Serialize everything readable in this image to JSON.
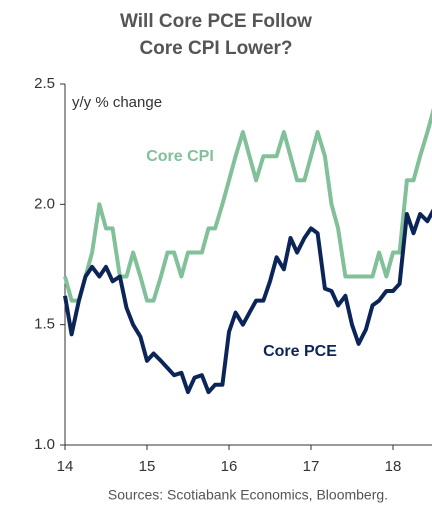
{
  "chart_data": {
    "type": "line",
    "title": [
      "Will Core PCE Follow",
      "Core CPI Lower?"
    ],
    "ylabel": "y/y % change",
    "source": "Sources: Scotiabank Economics, Bloomberg.",
    "xlim": [
      14,
      18.5
    ],
    "xticks": [
      14,
      15,
      16,
      17,
      18
    ],
    "ylim": [
      1,
      2.5
    ],
    "yticks": [
      {
        "value": 1,
        "label": "1.0"
      },
      1.5,
      {
        "value": 2,
        "label": "2.0"
      },
      2.5
    ],
    "x": [
      14,
      14.08,
      14.17,
      14.25,
      14.33,
      14.42,
      14.5,
      14.58,
      14.67,
      14.75,
      14.83,
      14.92,
      15,
      15.08,
      15.17,
      15.25,
      15.33,
      15.42,
      15.5,
      15.58,
      15.67,
      15.75,
      15.83,
      15.92,
      16,
      16.08,
      16.17,
      16.25,
      16.33,
      16.42,
      16.5,
      16.58,
      16.67,
      16.75,
      16.83,
      16.92,
      17,
      17.08,
      17.17,
      17.25,
      17.33,
      17.42,
      17.5,
      17.58,
      17.67,
      17.75,
      17.83,
      17.92,
      18,
      18.08,
      18.17,
      18.25,
      18.33,
      18.42,
      18.5
    ],
    "series": [
      {
        "name": "Core CPI",
        "color": "#82c09a",
        "values": [
          1.7,
          1.6,
          1.6,
          1.7,
          1.8,
          2.0,
          1.9,
          1.9,
          1.7,
          1.7,
          1.8,
          1.7,
          1.6,
          1.6,
          1.7,
          1.8,
          1.8,
          1.7,
          1.8,
          1.8,
          1.8,
          1.9,
          1.9,
          2.0,
          2.1,
          2.2,
          2.3,
          2.2,
          2.1,
          2.2,
          2.2,
          2.2,
          2.3,
          2.2,
          2.1,
          2.1,
          2.2,
          2.3,
          2.2,
          2.0,
          1.9,
          1.7,
          1.7,
          1.7,
          1.7,
          1.7,
          1.8,
          1.7,
          1.8,
          1.8,
          2.1,
          2.1,
          2.2,
          2.3,
          2.4
        ]
      },
      {
        "name": "Core PCE",
        "color": "#0c2559",
        "values": [
          1.62,
          1.46,
          1.6,
          1.7,
          1.74,
          1.7,
          1.74,
          1.68,
          1.7,
          1.57,
          1.5,
          1.45,
          1.35,
          1.38,
          1.35,
          1.32,
          1.29,
          1.3,
          1.22,
          1.28,
          1.29,
          1.22,
          1.25,
          1.25,
          1.47,
          1.55,
          1.5,
          1.55,
          1.6,
          1.6,
          1.68,
          1.78,
          1.73,
          1.86,
          1.8,
          1.86,
          1.9,
          1.88,
          1.65,
          1.64,
          1.58,
          1.62,
          1.5,
          1.42,
          1.48,
          1.58,
          1.6,
          1.64,
          1.64,
          1.67,
          1.96,
          1.88,
          1.96,
          1.93,
          1.98
        ]
      }
    ]
  }
}
